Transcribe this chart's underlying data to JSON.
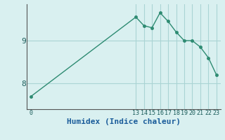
{
  "xlabel": "Humidex (Indice chaleur)",
  "x_values": [
    0,
    13,
    14,
    15,
    16,
    17,
    18,
    19,
    20,
    21,
    22,
    23
  ],
  "y_values": [
    7.7,
    9.55,
    9.35,
    9.3,
    9.65,
    9.45,
    9.2,
    9.0,
    9.0,
    8.85,
    8.6,
    8.2
  ],
  "line_color": "#2e8b72",
  "marker_color": "#2e8b72",
  "bg_color": "#d9f0f0",
  "grid_color": "#aad4d4",
  "axis_color": "#555555",
  "yticks": [
    8,
    9
  ],
  "ylim": [
    7.4,
    9.85
  ],
  "xlim": [
    -0.5,
    23.5
  ],
  "xlabel_fontsize": 8,
  "tick_fontsize": 8,
  "vgrid_positions": [
    13,
    14,
    15,
    16,
    17,
    18,
    19,
    20,
    21,
    22,
    23
  ]
}
